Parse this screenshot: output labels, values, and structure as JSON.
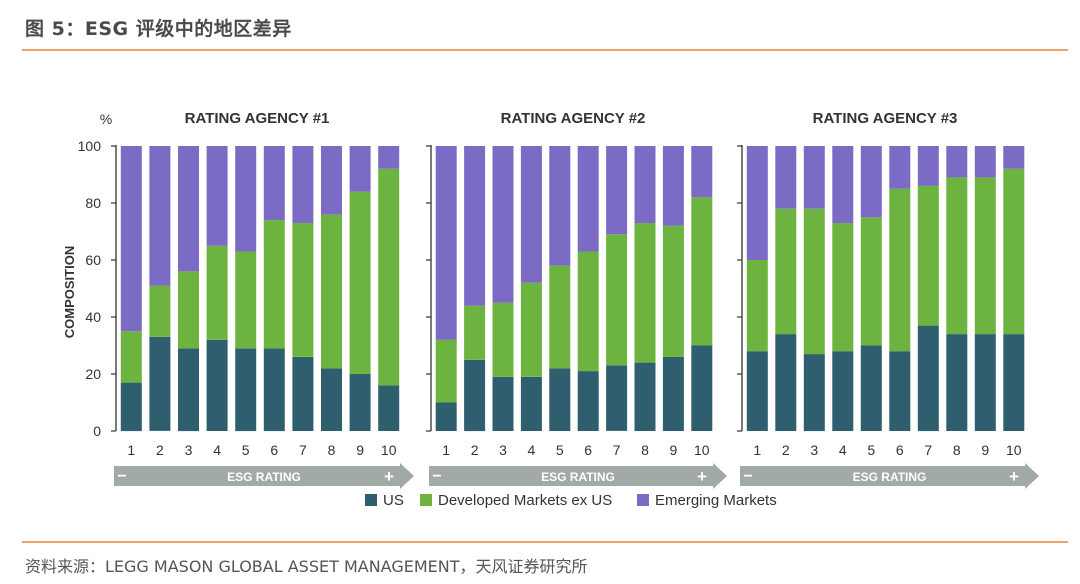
{
  "header": {
    "title": "图 5：ESG 评级中的地区差异"
  },
  "source": {
    "text": "资料来源：LEGG MASON GLOBAL ASSET MANAGEMENT，天风证券研究所"
  },
  "colors": {
    "us": "#2f5f6e",
    "dev": "#6db33f",
    "em": "#7b6bc4",
    "arrow": "#a2aaa7",
    "axis": "#333333"
  },
  "chart_data": [
    {
      "type": "bar",
      "stacked": true,
      "title": "RATING AGENCY #1",
      "categories": [
        "1",
        "2",
        "3",
        "4",
        "5",
        "6",
        "7",
        "8",
        "9",
        "10"
      ],
      "series": [
        {
          "name": "US",
          "values": [
            17,
            33,
            29,
            32,
            29,
            29,
            26,
            22,
            20,
            16
          ]
        },
        {
          "name": "Developed Markets ex US",
          "values": [
            18,
            18,
            27,
            33,
            34,
            45,
            47,
            54,
            64,
            76
          ]
        },
        {
          "name": "Emerging Markets",
          "values": [
            65,
            49,
            44,
            35,
            37,
            26,
            27,
            24,
            16,
            8
          ]
        }
      ],
      "ylim": [
        0,
        100
      ],
      "ylabel": "COMPOSITION",
      "xlabel": "ESG RATING",
      "yticks": [
        "0",
        "20",
        "40",
        "60",
        "80",
        "100"
      ],
      "yunit": "%"
    },
    {
      "type": "bar",
      "stacked": true,
      "title": "RATING AGENCY #2",
      "categories": [
        "1",
        "2",
        "3",
        "4",
        "5",
        "6",
        "7",
        "8",
        "9",
        "10"
      ],
      "series": [
        {
          "name": "US",
          "values": [
            10,
            25,
            19,
            19,
            22,
            21,
            23,
            24,
            26,
            30
          ]
        },
        {
          "name": "Developed Markets ex US",
          "values": [
            22,
            19,
            26,
            33,
            36,
            42,
            46,
            49,
            46,
            52
          ]
        },
        {
          "name": "Emerging Markets",
          "values": [
            68,
            56,
            55,
            48,
            42,
            37,
            31,
            27,
            28,
            18
          ]
        }
      ],
      "ylim": [
        0,
        100
      ],
      "xlabel": "ESG RATING"
    },
    {
      "type": "bar",
      "stacked": true,
      "title": "RATING AGENCY #3",
      "categories": [
        "1",
        "2",
        "3",
        "4",
        "5",
        "6",
        "7",
        "8",
        "9",
        "10"
      ],
      "series": [
        {
          "name": "US",
          "values": [
            28,
            34,
            27,
            28,
            30,
            28,
            37,
            34,
            34,
            34
          ]
        },
        {
          "name": "Developed Markets ex US",
          "values": [
            32,
            44,
            51,
            45,
            45,
            57,
            49,
            55,
            55,
            58
          ]
        },
        {
          "name": "Emerging Markets",
          "values": [
            40,
            22,
            22,
            27,
            25,
            15,
            14,
            11,
            11,
            8
          ]
        }
      ],
      "ylim": [
        0,
        100
      ],
      "xlabel": "ESG RATING"
    }
  ],
  "legend": {
    "items": [
      "US",
      "Developed Markets ex US",
      "Emerging Markets"
    ]
  },
  "arrow": {
    "minus": "−",
    "plus": "+"
  }
}
